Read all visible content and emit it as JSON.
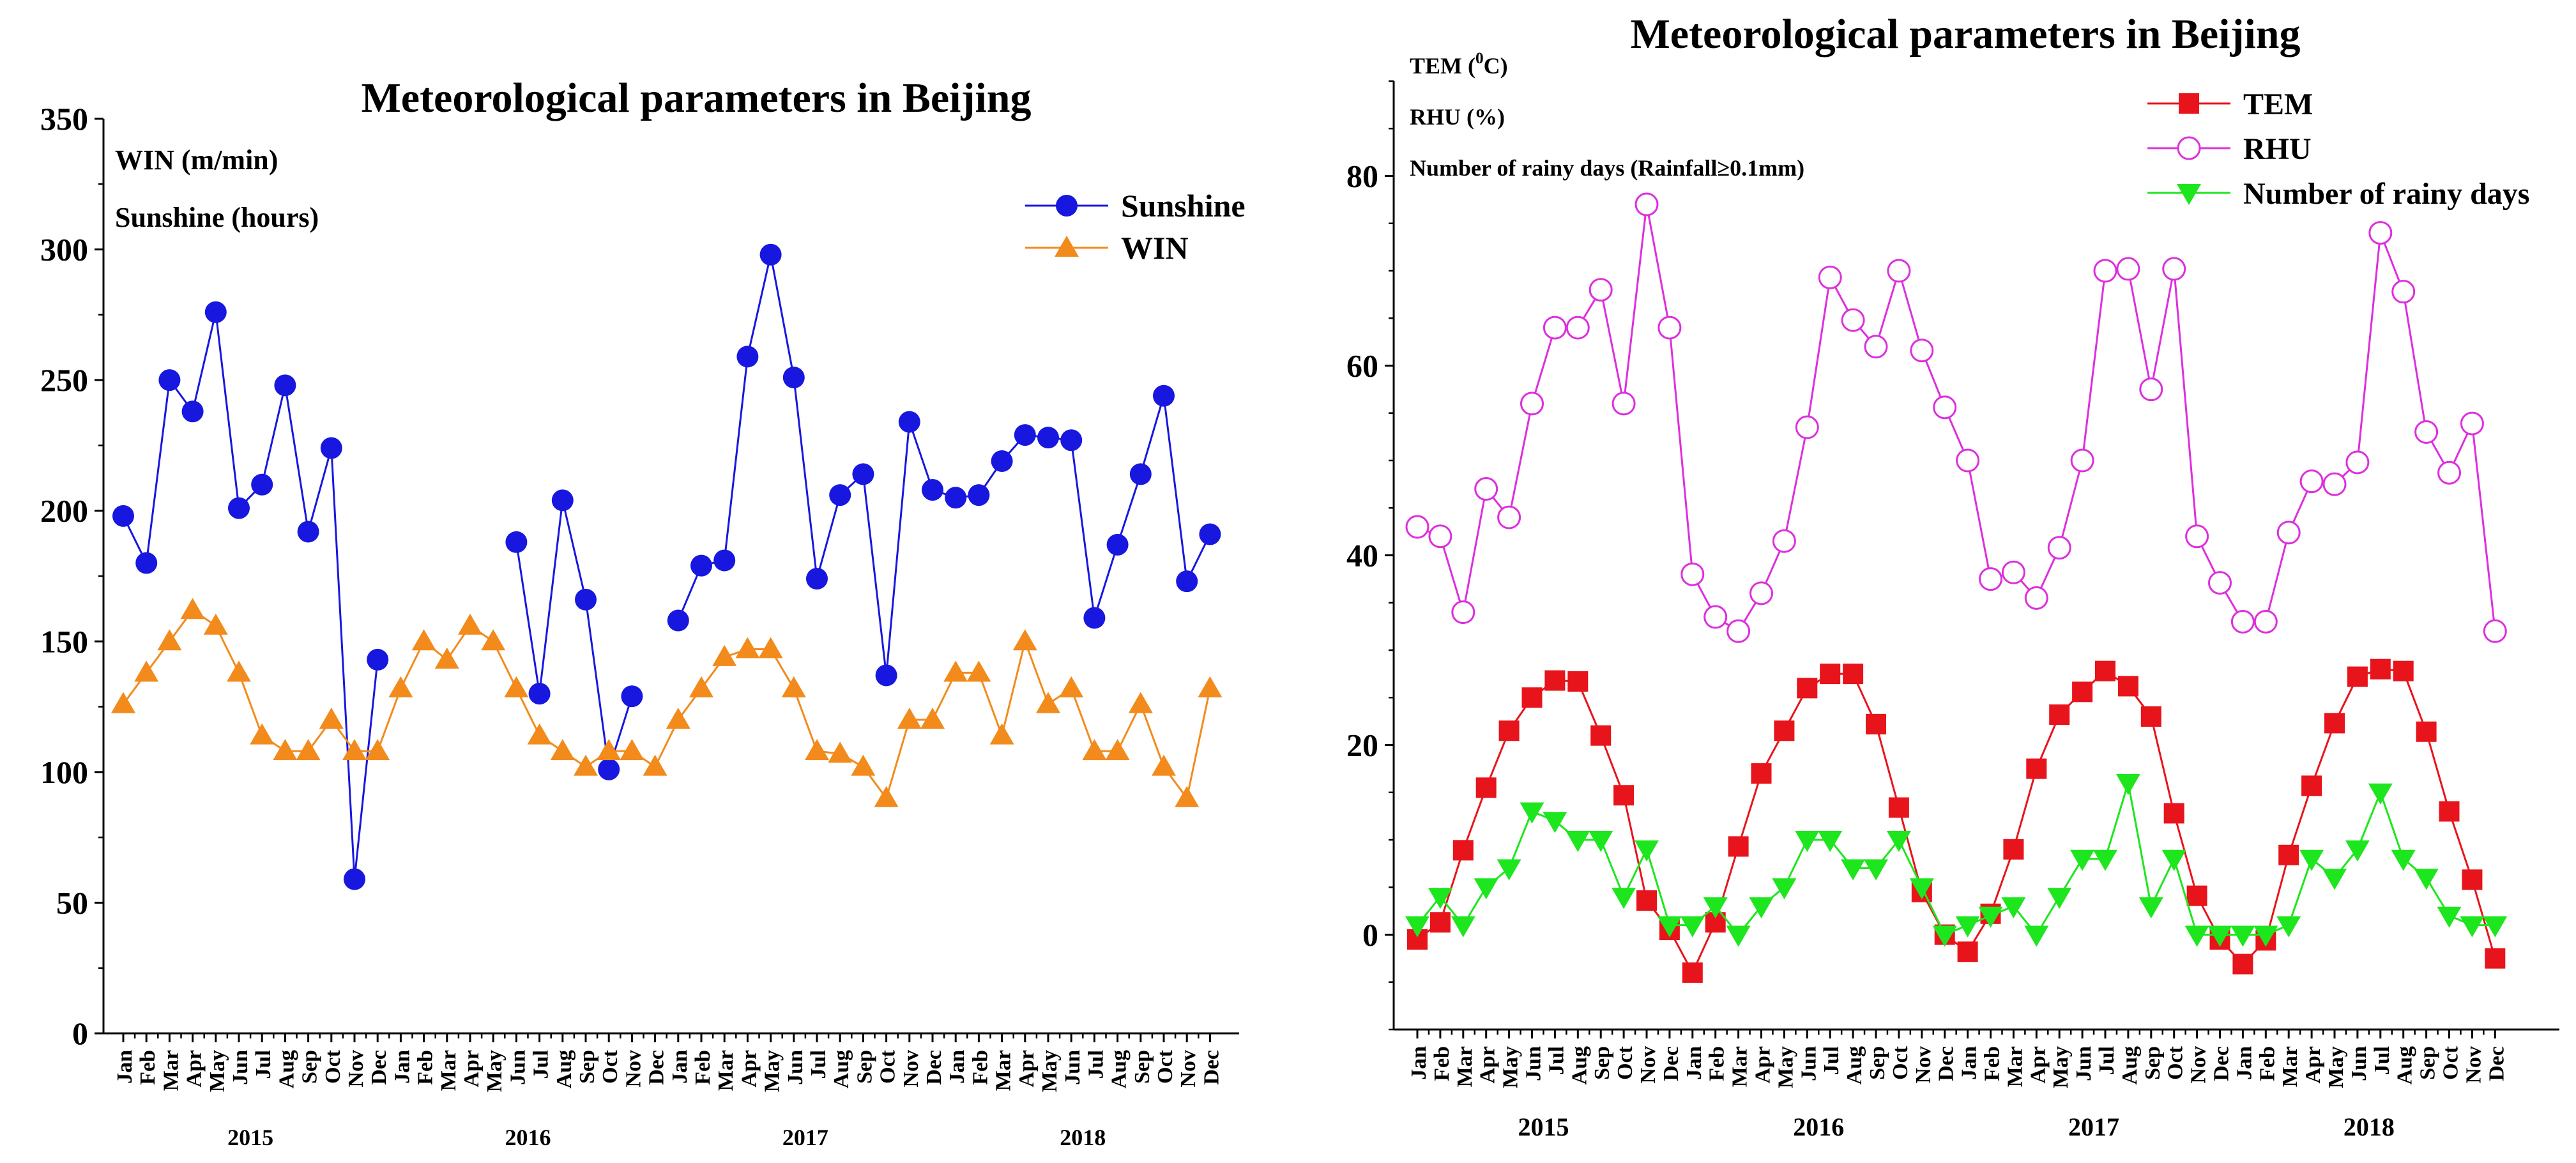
{
  "chart_data": [
    {
      "type": "line",
      "title": "Meteorological parameters in Beijing",
      "ylabel_lines": [
        "WIN (m/min)",
        "Sunshine (hours)"
      ],
      "xlabel": "",
      "ylim": [
        0,
        350
      ],
      "yticks": [
        0,
        50,
        100,
        150,
        200,
        250,
        300,
        350
      ],
      "grid": false,
      "legend_position": "top-right",
      "months": [
        "Jan",
        "Feb",
        "Mar",
        "Apr",
        "May",
        "Jun",
        "Jul",
        "Aug",
        "Sep",
        "Oct",
        "Nov",
        "Dec"
      ],
      "years": [
        "2015",
        "2016",
        "2017",
        "2018"
      ],
      "series": [
        {
          "name": "Sunshine",
          "marker": "circle",
          "color": "#1717e0",
          "values": [
            198,
            180,
            250,
            238,
            276,
            201,
            210,
            248,
            192,
            224,
            59,
            143,
            null,
            null,
            null,
            null,
            null,
            188,
            130,
            204,
            166,
            101,
            129,
            null,
            158,
            179,
            181,
            259,
            298,
            251,
            174,
            206,
            214,
            137,
            234,
            208,
            205,
            206,
            219,
            229,
            228,
            227,
            159,
            187,
            214,
            244,
            173,
            191
          ]
        },
        {
          "name": "WIN",
          "marker": "triangle-up",
          "color": "#f28b1c",
          "values": [
            126,
            138,
            150,
            162,
            156,
            138,
            114,
            108,
            108,
            120,
            108,
            108,
            132,
            150,
            143,
            156,
            150,
            132,
            114,
            108,
            102,
            108,
            108,
            102,
            120,
            132,
            144,
            147,
            147,
            132,
            108,
            107,
            102,
            90,
            120,
            120,
            138,
            138,
            114,
            150,
            126,
            132,
            108,
            108,
            126,
            102,
            90,
            132
          ]
        }
      ]
    },
    {
      "type": "line",
      "title": "Meteorological parameters in Beijing",
      "ylabel_lines": [
        {
          "main": "TEM (",
          "sup": "0",
          "tail": "C)"
        },
        {
          "main": "RHU (%)",
          "sup": "",
          "tail": ""
        },
        {
          "main": "Number of rainy days (Rainfall≥0.1mm)",
          "sup": "",
          "tail": ""
        }
      ],
      "xlabel": "",
      "ylim": [
        -10,
        90
      ],
      "yticks": [
        0,
        20,
        40,
        60,
        80
      ],
      "grid": false,
      "legend_position": "top-right",
      "months": [
        "Jan",
        "Feb",
        "Mar",
        "Apr",
        "May",
        "Jun",
        "Jul",
        "Aug",
        "Sep",
        "Oct",
        "Nov",
        "Dec"
      ],
      "years": [
        "2015",
        "2016",
        "2017",
        "2018"
      ],
      "series": [
        {
          "name": "TEM",
          "marker": "square",
          "color": "#e8141b",
          "values": [
            -0.5,
            1.3,
            8.9,
            15.5,
            21.5,
            25.0,
            26.8,
            26.7,
            21.0,
            14.7,
            3.6,
            0.5,
            -4.0,
            1.3,
            9.3,
            17.0,
            21.5,
            26.0,
            27.5,
            27.5,
            22.2,
            13.4,
            4.5,
            0.0,
            -1.8,
            2.2,
            9.0,
            17.5,
            23.2,
            25.6,
            27.8,
            26.2,
            23.0,
            12.8,
            4.1,
            -0.5,
            -3.1,
            -0.6,
            8.4,
            15.7,
            22.3,
            27.2,
            28.0,
            27.8,
            21.4,
            13.0,
            5.8,
            -2.5
          ]
        },
        {
          "name": "RHU",
          "marker": "circle-open",
          "color": "#dd2fdd",
          "values": [
            43,
            42,
            34,
            47,
            44,
            56,
            64,
            64,
            68,
            56,
            77,
            64,
            38,
            33.5,
            32,
            36,
            41.5,
            53.5,
            69.3,
            64.8,
            62,
            70,
            61.6,
            55.6,
            50,
            37.5,
            38.2,
            35.5,
            40.8,
            50,
            70,
            70.2,
            57.5,
            70.2,
            42,
            37.1,
            33,
            33,
            42.4,
            47.8,
            47.5,
            49.8,
            74,
            67.8,
            53,
            48.7,
            53.9,
            32
          ]
        },
        {
          "name": "Number of rainy days",
          "marker": "triangle-down",
          "color": "#1ee61e",
          "values": [
            1,
            4,
            1,
            5,
            7,
            13,
            12,
            10,
            10,
            4,
            9,
            1,
            1,
            3,
            0,
            3,
            5,
            10,
            10,
            7,
            7,
            10,
            5,
            0,
            1,
            2,
            3,
            0,
            4,
            8,
            8,
            16,
            3,
            8,
            0,
            0,
            0,
            0,
            1,
            8,
            6,
            9,
            15,
            8,
            6,
            2,
            1,
            1
          ]
        }
      ]
    }
  ]
}
